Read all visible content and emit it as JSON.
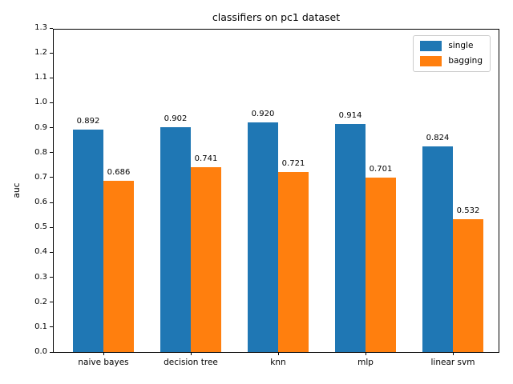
{
  "figure": {
    "background": "#ffffff",
    "text_color": "#000000",
    "legend_border_color": "#cccccc"
  },
  "chart_data": {
    "type": "bar",
    "title": "classifiers on pc1 dataset",
    "xlabel": "",
    "ylabel": "auc",
    "categories": [
      "naive bayes",
      "decision tree",
      "knn",
      "mlp",
      "linear svm"
    ],
    "series": [
      {
        "name": "single",
        "color": "#1f77b4",
        "values": [
          0.892,
          0.902,
          0.92,
          0.914,
          0.824
        ]
      },
      {
        "name": "bagging",
        "color": "#ff7f0e",
        "values": [
          0.686,
          0.741,
          0.721,
          0.701,
          0.532
        ]
      }
    ],
    "bar_labels": [
      [
        "0.892",
        "0.902",
        "0.920",
        "0.914",
        "0.824"
      ],
      [
        "0.686",
        "0.741",
        "0.721",
        "0.701",
        "0.532"
      ]
    ],
    "ylim": [
      0.0,
      1.3
    ],
    "yticks": [
      "0.0",
      "0.1",
      "0.2",
      "0.3",
      "0.4",
      "0.5",
      "0.6",
      "0.7",
      "0.8",
      "0.9",
      "1.0",
      "1.1",
      "1.2",
      "1.3"
    ],
    "grid": false,
    "legend": {
      "position": "upper right",
      "entries": [
        "single",
        "bagging"
      ]
    }
  }
}
